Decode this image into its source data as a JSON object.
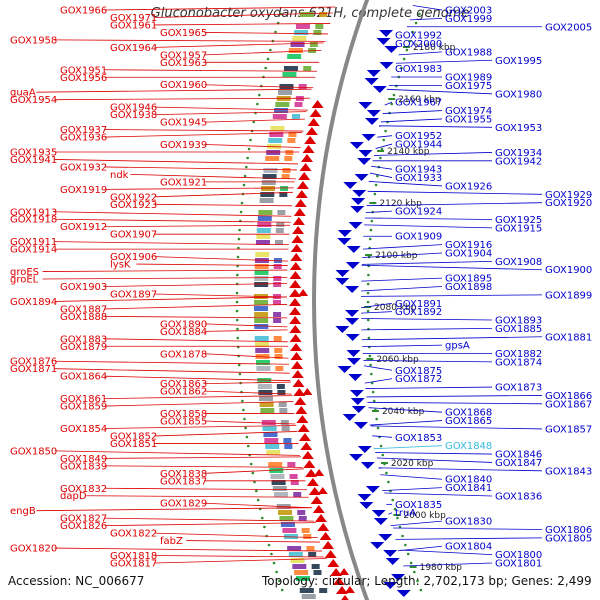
{
  "title": "Gluconobacter oxydans 621H, complete genome",
  "accession_text": "Accession: NC_006677",
  "topology_text": "Topology: circular; Length: 2,702,173 bp; Genes: 2,499",
  "colors": {
    "left_genes": "#dd0000",
    "right_genes": "#0000cc",
    "highlight_gene": "#33bbdd",
    "backbone": "#888888",
    "ring_dots": "#2e8b2e"
  },
  "left_genes": [
    "GOX1966",
    "GOX1971",
    "GOX1961",
    "GOX1965",
    "GOX1958",
    "GOX1964",
    "GOX1957",
    "GOX1963",
    "GOX1951",
    "GOX1956",
    "GOX1960",
    "guaA",
    "GOX1954",
    "GOX1946",
    "GOX1938",
    "GOX1945",
    "GOX1937",
    "GOX1936",
    "GOX1939",
    "GOX1935",
    "GOX1941",
    "GOX1932",
    "ndk",
    "GOX1921",
    "GOX1919",
    "GOX1922",
    "GOX1923",
    "GOX1913",
    "GOX1918",
    "GOX1912",
    "GOX1907",
    "GOX1911",
    "GOX1914",
    "GOX1906",
    "lysK",
    "groES",
    "groEL",
    "GOX1903",
    "GOX1897",
    "GOX1894",
    "GOX1887",
    "GOX1888",
    "GOX1890",
    "GOX1884",
    "GOX1883",
    "GOX1879",
    "GOX1878",
    "GOX1876",
    "GOX1871",
    "GOX1864",
    "GOX1863",
    "GOX1862",
    "GOX1861",
    "GOX1859",
    "GOX1858",
    "GOX1855",
    "GOX1854",
    "GOX1852",
    "GOX1851",
    "GOX1850",
    "GOX1849",
    "GOX1839",
    "GOX1838",
    "GOX1837",
    "GOX1832",
    "dapD",
    "GOX1829",
    "engB",
    "GOX1827",
    "GOX1826",
    "GOX1822",
    "fabZ",
    "GOX1820",
    "GOX1818",
    "GOX1817"
  ],
  "right_genes": [
    "GOX2003",
    "GOX1999",
    "GOX2005",
    "GOX1992",
    "GOX2000",
    "GOX1988",
    "GOX1995",
    "GOX1983",
    "GOX1989",
    "GOX1975",
    "GOX1980",
    "GOX1967",
    "GOX1974",
    "GOX1955",
    "GOX1953",
    "GOX1952",
    "GOX1944",
    "GOX1934",
    "GOX1942",
    "GOX1943",
    "GOX1933",
    "GOX1926",
    "GOX1929",
    "GOX1920",
    "GOX1924",
    "GOX1925",
    "GOX1915",
    "GOX1909",
    "GOX1916",
    "GOX1904",
    "GOX1908",
    "GOX1900",
    "GOX1895",
    "GOX1898",
    "GOX1899",
    "GOX1891",
    "GOX1892",
    "GOX1893",
    "GOX1885",
    "GOX1881",
    "gpsA",
    "GOX1882",
    "GOX1874",
    "GOX1875",
    "GOX1872",
    "GOX1873",
    "GOX1866",
    "GOX1867",
    "GOX1868",
    "GOX1865",
    "GOX1857",
    "GOX1853",
    "GOX1848",
    "GOX1846",
    "GOX1847",
    "GOX1843",
    "GOX1840",
    "GOX1841",
    "GOX1836",
    "GOX1835",
    "truA",
    "GOX1830",
    "GOX1806",
    "GOX1805",
    "GOX1804",
    "GOX1800",
    "GOX1801"
  ],
  "kbp_ticks": [
    "2180 kbp",
    "2160 kbp",
    "2140 kbp",
    "2120 kbp",
    "2100 kbp",
    "2080 kbp",
    "2060 kbp",
    "2040 kbp",
    "2020 kbp",
    "2000 kbp",
    "1980 kbp"
  ]
}
